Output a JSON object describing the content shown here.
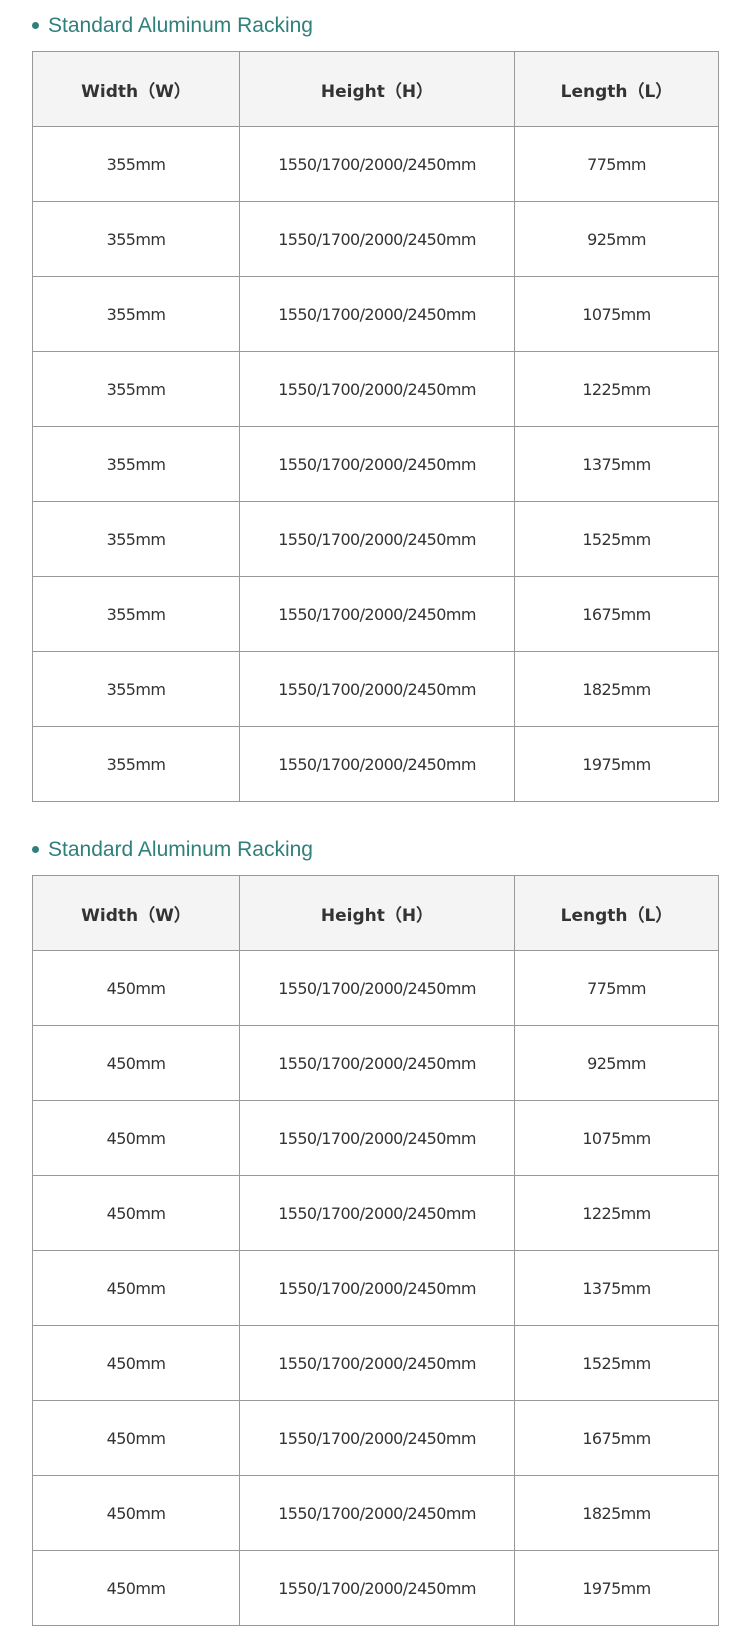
{
  "tables": [
    {
      "title": "Standard Aluminum Racking",
      "headers": [
        "Width（W）",
        "Height（H）",
        "Length（L）"
      ],
      "rows": [
        [
          "355mm",
          "1550/1700/2000/2450mm",
          "775mm"
        ],
        [
          "355mm",
          "1550/1700/2000/2450mm",
          "925mm"
        ],
        [
          "355mm",
          "1550/1700/2000/2450mm",
          "1075mm"
        ],
        [
          "355mm",
          "1550/1700/2000/2450mm",
          "1225mm"
        ],
        [
          "355mm",
          "1550/1700/2000/2450mm",
          "1375mm"
        ],
        [
          "355mm",
          "1550/1700/2000/2450mm",
          "1525mm"
        ],
        [
          "355mm",
          "1550/1700/2000/2450mm",
          "1675mm"
        ],
        [
          "355mm",
          "1550/1700/2000/2450mm",
          "1825mm"
        ],
        [
          "355mm",
          "1550/1700/2000/2450mm",
          "1975mm"
        ]
      ]
    },
    {
      "title": "Standard Aluminum Racking",
      "headers": [
        "Width（W）",
        "Height（H）",
        "Length（L）"
      ],
      "rows": [
        [
          "450mm",
          "1550/1700/2000/2450mm",
          "775mm"
        ],
        [
          "450mm",
          "1550/1700/2000/2450mm",
          "925mm"
        ],
        [
          "450mm",
          "1550/1700/2000/2450mm",
          "1075mm"
        ],
        [
          "450mm",
          "1550/1700/2000/2450mm",
          "1225mm"
        ],
        [
          "450mm",
          "1550/1700/2000/2450mm",
          "1375mm"
        ],
        [
          "450mm",
          "1550/1700/2000/2450mm",
          "1525mm"
        ],
        [
          "450mm",
          "1550/1700/2000/2450mm",
          "1675mm"
        ],
        [
          "450mm",
          "1550/1700/2000/2450mm",
          "1825mm"
        ],
        [
          "450mm",
          "1550/1700/2000/2450mm",
          "1975mm"
        ]
      ]
    }
  ],
  "colors": {
    "accent": "#2f7f7a",
    "header_bg": "#f4f4f4",
    "border": "#999999"
  }
}
